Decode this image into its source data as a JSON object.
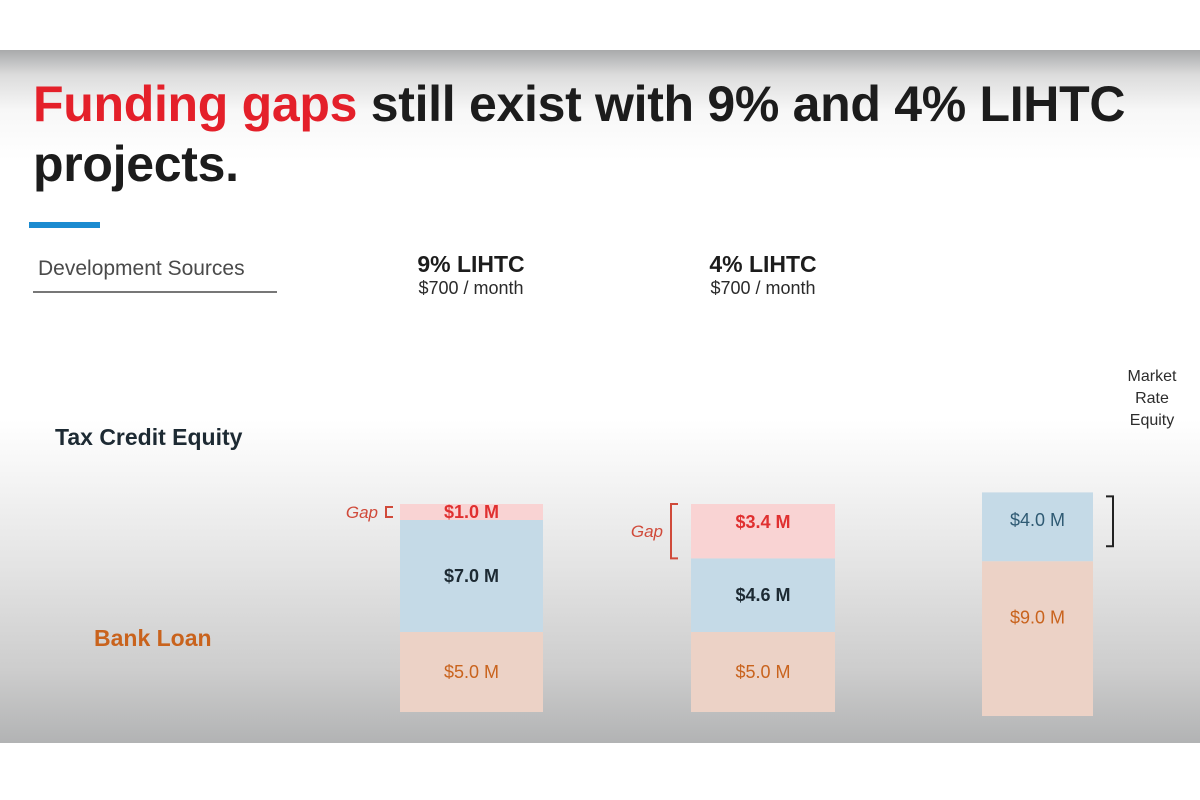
{
  "slide": {
    "title_highlight": "Funding gaps",
    "title_rest": " still exist with 9% and 4% LIHTC projects.",
    "section_label": "Development Sources",
    "row_labels": {
      "tax_credit_equity": "Tax Credit Equity",
      "bank_loan": "Bank Loan"
    },
    "colors": {
      "title_highlight": "#e4202a",
      "accent_bar": "#1b8bd0",
      "gap_fill": "#f9d3d3",
      "equity_fill": "#c5dae7",
      "loan_fill": "#ecd2c6",
      "gap_text": "#e03030",
      "equity_text": "#1d2a33",
      "loan_text": "#c9631d",
      "brace_red": "#d04a3a",
      "brace_dark": "#222222"
    }
  },
  "chart_data": {
    "type": "bar",
    "stacked": true,
    "title": "Funding gaps still exist with 9% and 4% LIHTC projects.",
    "xlabel": "",
    "ylabel": "Development Sources",
    "units": "$M",
    "categories": [
      {
        "name": "9% LIHTC",
        "subtitle": "$700 / month"
      },
      {
        "name": "4% LIHTC",
        "subtitle": "$700 / month"
      },
      {
        "name": "",
        "subtitle": ""
      }
    ],
    "series": [
      {
        "name": "Bank Loan",
        "values": [
          5.0,
          5.0,
          9.0
        ],
        "labels": [
          "$5.0 M",
          "$5.0 M",
          "$9.0 M"
        ]
      },
      {
        "name": "Tax Credit Equity",
        "values": [
          7.0,
          4.6,
          null
        ],
        "labels": [
          "$7.0 M",
          "$4.6 M",
          ""
        ]
      },
      {
        "name": "Gap",
        "values": [
          1.0,
          3.4,
          null
        ],
        "labels": [
          "$1.0 M",
          "$3.4 M",
          ""
        ]
      },
      {
        "name": "Market Rate Equity",
        "values": [
          null,
          null,
          4.0
        ],
        "labels": [
          "",
          "",
          "$4.0 M"
        ]
      }
    ],
    "annotations": [
      {
        "text": "Gap",
        "category": "9% LIHTC",
        "brackets": "Gap"
      },
      {
        "text": "Gap",
        "category": "4% LIHTC",
        "brackets": "Gap"
      },
      {
        "text": "Market Rate Equity",
        "category": 2,
        "brackets": "Market Rate Equity"
      }
    ],
    "ylim": [
      0,
      13.4
    ],
    "grid": false,
    "legend": "none"
  }
}
